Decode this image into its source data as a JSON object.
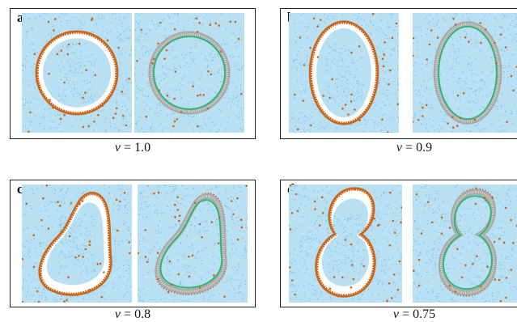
{
  "panels": [
    {
      "id": "a",
      "label": "a",
      "variable": "v",
      "equals": " = ",
      "value": "1.0",
      "shape": "circle"
    },
    {
      "id": "b",
      "label": "b",
      "variable": "v",
      "equals": " = ",
      "value": "0.9",
      "shape": "oval"
    },
    {
      "id": "c",
      "label": "c",
      "variable": "v",
      "equals": " = ",
      "value": "0.8",
      "shape": "pear"
    },
    {
      "id": "d",
      "label": "d",
      "variable": "v",
      "equals": " = ",
      "value": "0.75",
      "shape": "figure-eight"
    }
  ],
  "colors": {
    "water": "#b9e0f2",
    "water_dots": "#5fb7e0",
    "bilayer_head": "#c9671c",
    "bilayer_tail": "#a8a8a8",
    "inner_ring": "#2bb673",
    "interior_empty": "#ffffff"
  }
}
